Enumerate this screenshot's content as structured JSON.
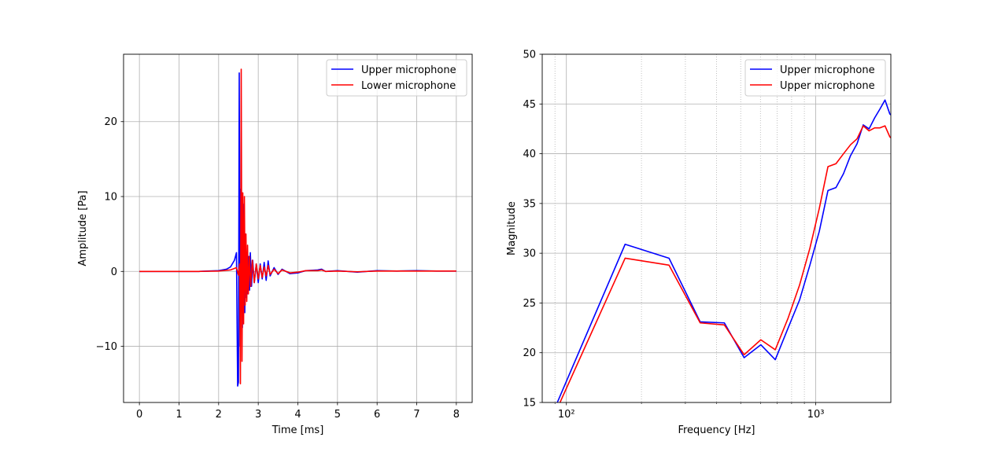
{
  "chart_data": [
    {
      "type": "line",
      "title": "",
      "xlabel": "Time [ms]",
      "ylabel": "Amplitude [Pa]",
      "xlim": [
        -0.4,
        8.4
      ],
      "ylim": [
        -17.5,
        29.0
      ],
      "xticks": [
        0,
        1,
        2,
        3,
        4,
        5,
        6,
        7,
        8
      ],
      "xtick_labels": [
        "0",
        "1",
        "2",
        "3",
        "4",
        "5",
        "6",
        "7",
        "8"
      ],
      "yticks": [
        -10,
        0,
        10,
        20
      ],
      "ytick_labels": [
        "−10",
        "0",
        "10",
        "20"
      ],
      "grid": true,
      "legend_position": "upper right",
      "series": [
        {
          "name": "Upper microphone",
          "color": "#0000ff",
          "x": [
            0,
            1.5,
            2.0,
            2.2,
            2.3,
            2.4,
            2.45,
            2.48,
            2.5,
            2.52,
            2.54,
            2.56,
            2.58,
            2.6,
            2.62,
            2.64,
            2.66,
            2.68,
            2.7,
            2.72,
            2.74,
            2.76,
            2.78,
            2.8,
            2.83,
            2.86,
            2.9,
            2.95,
            3.0,
            3.05,
            3.1,
            3.15,
            3.2,
            3.25,
            3.3,
            3.4,
            3.5,
            3.6,
            3.8,
            4.0,
            4.2,
            4.5,
            4.6,
            4.7,
            5.0,
            5.5,
            6.0,
            6.5,
            7.0,
            7.5,
            8.0
          ],
          "y": [
            0,
            0,
            0.1,
            0.3,
            0.6,
            1.5,
            2.5,
            -15.3,
            -14.8,
            26.5,
            -10.0,
            11.0,
            10.5,
            -7.5,
            9.0,
            5.5,
            -5.5,
            5.0,
            -3.5,
            2.5,
            -3.0,
            2.0,
            -2.5,
            2.5,
            -2.0,
            1.5,
            -1.5,
            1.0,
            -1.5,
            1.0,
            -1.0,
            1.2,
            -1.2,
            1.4,
            -0.6,
            0.5,
            -0.4,
            0.3,
            -0.3,
            -0.2,
            0.1,
            0.2,
            0.3,
            0.0,
            0.1,
            -0.1,
            0.1,
            0.05,
            0.1,
            0.05,
            0.05
          ]
        },
        {
          "name": "Lower microphone",
          "color": "#ff0000",
          "x": [
            0,
            1.5,
            2.0,
            2.3,
            2.45,
            2.5,
            2.53,
            2.55,
            2.57,
            2.59,
            2.61,
            2.63,
            2.65,
            2.67,
            2.69,
            2.71,
            2.73,
            2.75,
            2.78,
            2.81,
            2.85,
            2.9,
            2.95,
            3.0,
            3.05,
            3.1,
            3.15,
            3.2,
            3.25,
            3.3,
            3.4,
            3.5,
            3.6,
            3.8,
            4.0,
            4.2,
            4.5,
            4.6,
            4.7,
            5.0,
            5.5,
            6.0,
            6.5,
            7.0,
            7.5,
            8.0
          ],
          "y": [
            0,
            0,
            0.05,
            0.2,
            0.5,
            -0.5,
            1.0,
            -15.0,
            27.0,
            -12.0,
            10.5,
            -7.0,
            10.0,
            -4.5,
            5.0,
            -4.0,
            3.5,
            -3.0,
            2.0,
            -2.0,
            1.5,
            -1.5,
            1.0,
            -1.0,
            0.8,
            -0.8,
            0.6,
            -0.6,
            0.8,
            -0.4,
            0.3,
            -0.3,
            0.2,
            -0.2,
            -0.1,
            0.1,
            0.1,
            0.2,
            0.0,
            0.05,
            -0.05,
            0.05,
            0.05,
            0.05,
            0.05,
            0.05
          ]
        }
      ]
    },
    {
      "type": "line",
      "title": "",
      "xlabel": "Frequency [Hz]",
      "ylabel": "Magnitude",
      "xscale": "log",
      "xlim": [
        80,
        2000
      ],
      "ylim": [
        15,
        50
      ],
      "xticks": [
        100,
        1000
      ],
      "xtick_labels": [
        "10²",
        "10³"
      ],
      "x_minor_ticks": [
        90,
        200,
        300,
        400,
        500,
        600,
        700,
        800,
        900
      ],
      "yticks": [
        15,
        20,
        25,
        30,
        35,
        40,
        45,
        50
      ],
      "ytick_labels": [
        "15",
        "20",
        "25",
        "30",
        "35",
        "40",
        "45",
        "50"
      ],
      "grid": true,
      "legend_position": "upper right",
      "series": [
        {
          "name": "Upper microphone",
          "color": "#0000ff",
          "x": [
            85,
            172,
            258,
            344,
            430,
            516,
            602,
            688,
            775,
            861,
            947,
            1033,
            1119,
            1205,
            1292,
            1378,
            1464,
            1550,
            1636,
            1722,
            1809,
            1895,
            1981,
            2000
          ],
          "y": [
            13.0,
            30.9,
            29.5,
            23.1,
            23.0,
            19.5,
            20.8,
            19.3,
            22.5,
            25.3,
            28.8,
            32.2,
            36.3,
            36.6,
            38.0,
            39.8,
            41.0,
            42.9,
            42.5,
            43.6,
            44.5,
            45.4,
            44.0,
            43.9
          ]
        },
        {
          "name": "Upper microphone",
          "color": "#ff0000",
          "x": [
            85,
            172,
            258,
            344,
            430,
            516,
            602,
            688,
            775,
            861,
            947,
            1033,
            1119,
            1205,
            1292,
            1378,
            1464,
            1550,
            1636,
            1722,
            1809,
            1895,
            1981,
            2000
          ],
          "y": [
            12.5,
            29.5,
            28.8,
            23.0,
            22.8,
            19.8,
            21.3,
            20.3,
            23.5,
            26.8,
            30.5,
            34.5,
            38.7,
            39.0,
            40.0,
            40.9,
            41.5,
            42.8,
            42.3,
            42.6,
            42.6,
            42.8,
            41.7,
            41.6
          ]
        }
      ]
    }
  ]
}
